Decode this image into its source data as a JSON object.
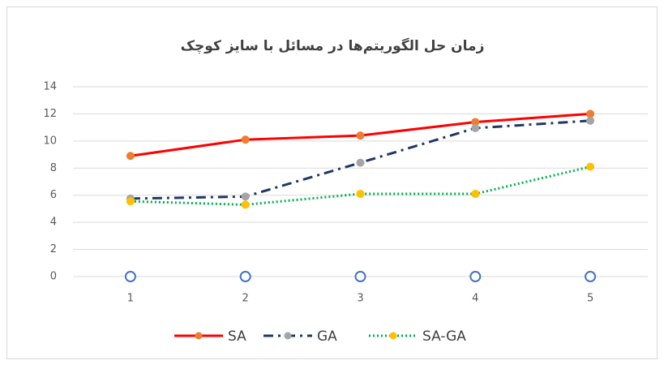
{
  "chart_data": {
    "type": "line",
    "title": "زمان حل الگوریتم‌ها در مسائل با سایز کوچک",
    "categories": [
      1,
      2,
      3,
      4,
      5
    ],
    "ylim": [
      0,
      14
    ],
    "yticks": [
      0,
      2,
      4,
      6,
      8,
      10,
      12,
      14
    ],
    "grid": true,
    "series": [
      {
        "name": "SA",
        "color": "#ff0000",
        "marker_color": "#ed7d31",
        "dash": "solid",
        "values": [
          8.9,
          10.1,
          10.4,
          11.4,
          12.0
        ]
      },
      {
        "name": "GA",
        "color": "#1f3864",
        "marker_color": "#a5a5a5",
        "dash": "dashdot",
        "values": [
          5.75,
          5.9,
          8.4,
          10.95,
          11.5
        ]
      },
      {
        "name": "SA-GA",
        "color": "#00b050",
        "marker_color": "#ffc000",
        "dash": "dot",
        "values": [
          5.55,
          5.3,
          6.1,
          6.1,
          8.1
        ]
      },
      {
        "color": "#4472c4",
        "marker_color": "#ffffff",
        "dash": "none",
        "values": [
          0,
          0,
          0,
          0,
          0
        ]
      }
    ]
  }
}
